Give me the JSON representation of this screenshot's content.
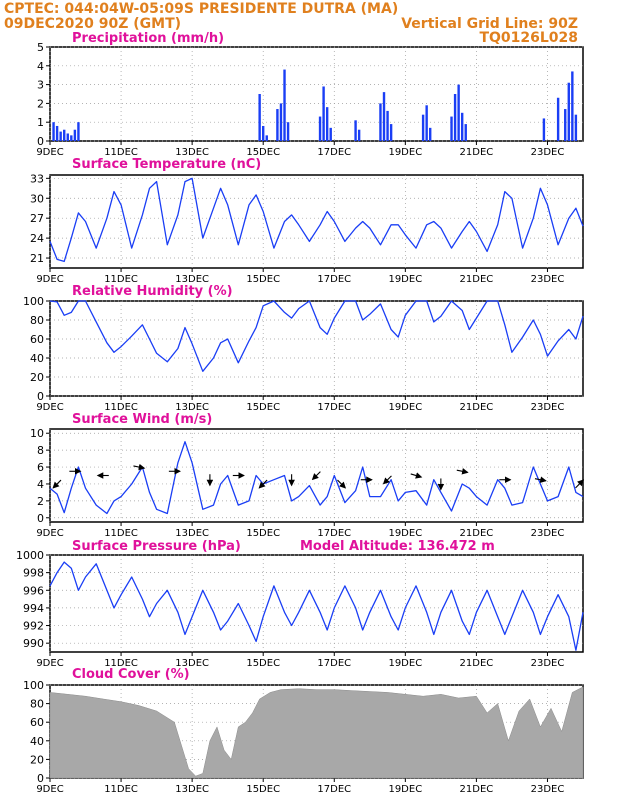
{
  "header": {
    "line1_left": "CPTEC:   044:04W-05:09S   PRESIDENTE DUTRA (MA)",
    "line2_left": "09DEC2020 90Z (GMT)",
    "line2_right": "Vertical Grid Line: 90Z",
    "line3_right": "TQ0126L028"
  },
  "colors": {
    "header_text": "#e0801e",
    "panel_title": "#e0119b",
    "series_line": "#1a3ef5",
    "cloud_fill": "#a8a8a8",
    "wind_arrow": "#000000"
  },
  "x_axis": {
    "tick_labels": [
      "9DEC",
      "11DEC",
      "13DEC",
      "15DEC",
      "17DEC",
      "19DEC",
      "21DEC",
      "23DEC"
    ],
    "start_day": 9,
    "end_day": 24
  },
  "chart_data": [
    {
      "id": "precip",
      "type": "bar",
      "title": "Precipitation  (mm/h)",
      "ylim": [
        0,
        5
      ],
      "yticks": [
        0,
        1,
        2,
        3,
        4,
        5
      ],
      "grid": true,
      "x": [
        9.1,
        9.2,
        9.3,
        9.4,
        9.5,
        9.6,
        9.7,
        9.8,
        14.9,
        15.0,
        15.1,
        15.4,
        15.5,
        15.6,
        15.7,
        16.6,
        16.7,
        16.8,
        16.9,
        17.6,
        17.7,
        18.3,
        18.4,
        18.5,
        18.6,
        19.5,
        19.6,
        19.7,
        20.3,
        20.4,
        20.5,
        20.6,
        20.7,
        22.9,
        23.3,
        23.5,
        23.6,
        23.7,
        23.8
      ],
      "values": [
        1.0,
        0.8,
        0.5,
        0.6,
        0.4,
        0.3,
        0.6,
        1.0,
        2.5,
        0.8,
        0.3,
        1.7,
        2.0,
        3.8,
        1.0,
        1.3,
        2.9,
        1.8,
        0.7,
        1.1,
        0.6,
        2.0,
        2.6,
        1.6,
        0.9,
        1.4,
        1.9,
        0.7,
        1.3,
        2.5,
        3.0,
        1.5,
        0.9,
        1.2,
        2.3,
        1.7,
        3.1,
        3.7,
        1.4
      ]
    },
    {
      "id": "temp",
      "type": "line",
      "title": "Surface Temperature (nC)",
      "ylim": [
        19.5,
        33.5
      ],
      "yticks": [
        21,
        24,
        27,
        30,
        33
      ],
      "grid": true,
      "x": [
        9.0,
        9.2,
        9.4,
        9.6,
        9.8,
        10.0,
        10.3,
        10.6,
        10.8,
        11.0,
        11.3,
        11.6,
        11.8,
        12.0,
        12.3,
        12.6,
        12.8,
        13.0,
        13.3,
        13.6,
        13.8,
        14.0,
        14.3,
        14.6,
        14.8,
        15.0,
        15.3,
        15.6,
        15.8,
        16.0,
        16.3,
        16.6,
        16.8,
        17.0,
        17.3,
        17.6,
        17.8,
        18.0,
        18.3,
        18.6,
        18.8,
        19.0,
        19.3,
        19.6,
        19.8,
        20.0,
        20.3,
        20.6,
        20.8,
        21.0,
        21.3,
        21.6,
        21.8,
        22.0,
        22.3,
        22.6,
        22.8,
        23.0,
        23.3,
        23.6,
        23.8,
        24.0
      ],
      "y": [
        23.5,
        20.8,
        20.5,
        24.0,
        27.8,
        26.5,
        22.5,
        27.0,
        31.0,
        29.0,
        22.5,
        27.5,
        31.5,
        32.5,
        23.0,
        27.5,
        32.5,
        33.0,
        24.0,
        28.5,
        31.5,
        29.0,
        23.0,
        29.0,
        30.5,
        28.0,
        22.5,
        26.5,
        27.5,
        26.0,
        23.5,
        26.0,
        28.0,
        26.5,
        23.5,
        25.5,
        26.5,
        25.5,
        23.0,
        26.0,
        26.0,
        24.5,
        22.5,
        26.0,
        26.5,
        25.5,
        22.5,
        25.0,
        26.5,
        25.0,
        22.0,
        26.0,
        31.0,
        30.0,
        22.5,
        27.0,
        31.5,
        29.0,
        23.0,
        27.0,
        28.5,
        25.8
      ]
    },
    {
      "id": "rh",
      "type": "line",
      "title": "Relative Humidity (%)",
      "ylim": [
        0,
        100
      ],
      "yticks": [
        0,
        20,
        40,
        60,
        80,
        100
      ],
      "grid": true,
      "x": [
        9.0,
        9.2,
        9.4,
        9.6,
        9.8,
        10.0,
        10.3,
        10.6,
        10.8,
        11.0,
        11.3,
        11.6,
        11.8,
        12.0,
        12.3,
        12.6,
        12.8,
        13.0,
        13.3,
        13.6,
        13.8,
        14.0,
        14.3,
        14.6,
        14.8,
        15.0,
        15.3,
        15.6,
        15.8,
        16.0,
        16.3,
        16.6,
        16.8,
        17.0,
        17.3,
        17.6,
        17.8,
        18.0,
        18.3,
        18.6,
        18.8,
        19.0,
        19.3,
        19.6,
        19.8,
        20.0,
        20.3,
        20.6,
        20.8,
        21.0,
        21.3,
        21.6,
        21.8,
        22.0,
        22.3,
        22.6,
        22.8,
        23.0,
        23.3,
        23.6,
        23.8,
        24.0
      ],
      "y": [
        100,
        99,
        85,
        88,
        100,
        100,
        78,
        56,
        46,
        52,
        63,
        75,
        60,
        45,
        36,
        50,
        72,
        55,
        26,
        40,
        56,
        60,
        35,
        58,
        72,
        95,
        100,
        88,
        82,
        92,
        100,
        72,
        65,
        82,
        100,
        100,
        80,
        86,
        97,
        70,
        62,
        85,
        100,
        100,
        78,
        84,
        100,
        90,
        70,
        82,
        100,
        100,
        75,
        46,
        62,
        80,
        65,
        42,
        58,
        70,
        60,
        84
      ]
    },
    {
      "id": "wind",
      "type": "line",
      "title": "Surface Wind  (m/s)",
      "ylim": [
        -0.5,
        10.5
      ],
      "yticks": [
        0,
        2,
        4,
        6,
        8,
        10
      ],
      "grid": true,
      "x": [
        9.0,
        9.2,
        9.4,
        9.6,
        9.8,
        10.0,
        10.3,
        10.6,
        10.8,
        11.0,
        11.3,
        11.6,
        11.8,
        12.0,
        12.3,
        12.6,
        12.8,
        13.0,
        13.3,
        13.6,
        13.8,
        14.0,
        14.3,
        14.6,
        14.8,
        15.0,
        15.3,
        15.6,
        15.8,
        16.0,
        16.3,
        16.6,
        16.8,
        17.0,
        17.3,
        17.6,
        17.8,
        18.0,
        18.3,
        18.6,
        18.8,
        19.0,
        19.3,
        19.6,
        19.8,
        20.0,
        20.3,
        20.6,
        20.8,
        21.0,
        21.3,
        21.6,
        21.8,
        22.0,
        22.3,
        22.6,
        22.8,
        23.0,
        23.3,
        23.6,
        23.8,
        24.0
      ],
      "y": [
        3.5,
        2.8,
        0.6,
        3.5,
        6.0,
        3.5,
        1.5,
        0.5,
        2.0,
        2.5,
        4.0,
        6.0,
        3.0,
        1.0,
        0.5,
        6.5,
        9.0,
        6.5,
        1.0,
        1.5,
        4.0,
        5.0,
        1.5,
        2.0,
        5.0,
        4.0,
        4.5,
        5.0,
        2.0,
        2.5,
        3.8,
        1.5,
        2.5,
        5.0,
        1.8,
        3.2,
        6.0,
        2.5,
        2.5,
        4.5,
        2.0,
        3.0,
        3.2,
        1.5,
        4.5,
        3.0,
        0.8,
        4.0,
        3.5,
        2.5,
        1.5,
        4.5,
        3.5,
        1.5,
        1.8,
        6.0,
        4.0,
        2.0,
        2.5,
        6.0,
        3.0,
        2.5
      ],
      "arrows": [
        {
          "x": 9.2,
          "y": 4.0,
          "dx": -1,
          "dy": -1
        },
        {
          "x": 9.7,
          "y": 5.5,
          "dx": 1,
          "dy": 0
        },
        {
          "x": 10.5,
          "y": 5.0,
          "dx": -1,
          "dy": 0
        },
        {
          "x": 11.5,
          "y": 6.0,
          "dx": 1,
          "dy": -0.2
        },
        {
          "x": 12.5,
          "y": 5.5,
          "dx": 1,
          "dy": 0
        },
        {
          "x": 13.5,
          "y": 4.5,
          "dx": 0,
          "dy": -1
        },
        {
          "x": 14.3,
          "y": 5.0,
          "dx": 1,
          "dy": 0
        },
        {
          "x": 15.0,
          "y": 4.0,
          "dx": -1,
          "dy": -1
        },
        {
          "x": 15.8,
          "y": 4.5,
          "dx": 0,
          "dy": -1
        },
        {
          "x": 16.5,
          "y": 5.0,
          "dx": -1,
          "dy": -1
        },
        {
          "x": 17.2,
          "y": 4.0,
          "dx": 1,
          "dy": -1
        },
        {
          "x": 17.9,
          "y": 4.5,
          "dx": 1,
          "dy": 0
        },
        {
          "x": 18.5,
          "y": 4.5,
          "dx": -1,
          "dy": -1
        },
        {
          "x": 19.3,
          "y": 5.0,
          "dx": 1,
          "dy": -0.3
        },
        {
          "x": 20.0,
          "y": 4.0,
          "dx": 0,
          "dy": -1
        },
        {
          "x": 20.6,
          "y": 5.5,
          "dx": 1,
          "dy": -0.2
        },
        {
          "x": 21.8,
          "y": 4.5,
          "dx": 1,
          "dy": 0
        },
        {
          "x": 22.8,
          "y": 4.5,
          "dx": 1,
          "dy": -0.2
        },
        {
          "x": 23.9,
          "y": 4.0,
          "dx": 1,
          "dy": 1
        }
      ]
    },
    {
      "id": "pressure",
      "type": "line",
      "title": "Surface Pressure (hPa)",
      "annotation": "Model Altitude: 136.472  m",
      "ylim": [
        989,
        1000
      ],
      "yticks": [
        990,
        992,
        994,
        996,
        998,
        1000
      ],
      "grid": true,
      "x": [
        9.0,
        9.2,
        9.4,
        9.6,
        9.8,
        10.0,
        10.3,
        10.6,
        10.8,
        11.0,
        11.3,
        11.6,
        11.8,
        12.0,
        12.3,
        12.6,
        12.8,
        13.0,
        13.3,
        13.6,
        13.8,
        14.0,
        14.3,
        14.6,
        14.8,
        15.0,
        15.3,
        15.6,
        15.8,
        16.0,
        16.3,
        16.6,
        16.8,
        17.0,
        17.3,
        17.6,
        17.8,
        18.0,
        18.3,
        18.6,
        18.8,
        19.0,
        19.3,
        19.6,
        19.8,
        20.0,
        20.3,
        20.6,
        20.8,
        21.0,
        21.3,
        21.6,
        21.8,
        22.0,
        22.3,
        22.6,
        22.8,
        23.0,
        23.3,
        23.6,
        23.8,
        24.0
      ],
      "y": [
        996.5,
        998.0,
        999.2,
        998.5,
        996.0,
        997.5,
        999.0,
        996.0,
        994.0,
        995.5,
        997.5,
        995.0,
        993.0,
        994.5,
        996.0,
        993.5,
        991.0,
        993.0,
        996.0,
        993.5,
        991.5,
        992.5,
        994.5,
        992.0,
        990.2,
        993.0,
        996.5,
        993.5,
        992.0,
        993.5,
        996.0,
        993.5,
        991.5,
        994.0,
        996.5,
        994.0,
        991.5,
        993.5,
        996.0,
        993.0,
        991.5,
        994.0,
        996.5,
        993.5,
        991.0,
        993.5,
        996.0,
        992.5,
        991.0,
        993.5,
        996.0,
        993.0,
        991.0,
        993.0,
        996.0,
        993.5,
        991.0,
        993.0,
        995.5,
        993.0,
        989.2,
        993.5
      ]
    },
    {
      "id": "cloud",
      "type": "area",
      "title": "Cloud Cover (%)",
      "ylim": [
        0,
        100
      ],
      "yticks": [
        0,
        20,
        40,
        60,
        80,
        100
      ],
      "grid": true,
      "x": [
        9.0,
        9.5,
        10.0,
        10.5,
        11.0,
        11.5,
        12.0,
        12.5,
        12.7,
        12.9,
        13.1,
        13.3,
        13.5,
        13.7,
        13.9,
        14.1,
        14.3,
        14.5,
        14.7,
        14.9,
        15.2,
        15.5,
        16.0,
        16.5,
        17.0,
        17.5,
        18.0,
        18.5,
        19.0,
        19.5,
        20.0,
        20.5,
        21.0,
        21.3,
        21.6,
        21.9,
        22.2,
        22.5,
        22.8,
        23.1,
        23.4,
        23.7,
        24.0
      ],
      "y": [
        92,
        90,
        88,
        85,
        82,
        78,
        72,
        60,
        35,
        10,
        2,
        5,
        40,
        55,
        30,
        20,
        55,
        60,
        70,
        85,
        92,
        95,
        96,
        95,
        95,
        94,
        93,
        92,
        90,
        88,
        90,
        86,
        88,
        70,
        80,
        40,
        72,
        85,
        55,
        75,
        50,
        92,
        98
      ]
    }
  ]
}
